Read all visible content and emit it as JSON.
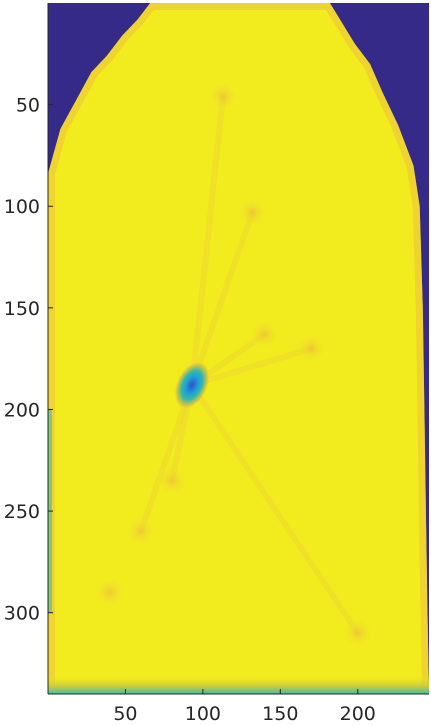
{
  "chart_data": {
    "type": "heatmap",
    "title": "",
    "xlabel": "",
    "ylabel": "",
    "xlim": [
      0,
      246
    ],
    "ylim": [
      0,
      340
    ],
    "y_reversed": true,
    "x_ticks": [
      50,
      100,
      150,
      200
    ],
    "y_ticks": [
      50,
      100,
      150,
      200,
      250,
      300
    ],
    "grid": false,
    "colormap": "parula",
    "colors": {
      "background": "#352A87",
      "field": "#F2EC1E",
      "field_light": "#F8F026",
      "warm_spot": "#EDBF3E",
      "edge_band": "#3CC1A5",
      "hotspot_mid": "#39B9A8",
      "hotspot_core": "#2E4FD0",
      "axis": "#262626"
    },
    "region_outline": [
      [
        0,
        84
      ],
      [
        8,
        62
      ],
      [
        18,
        48
      ],
      [
        28,
        34
      ],
      [
        38,
        26
      ],
      [
        48,
        16
      ],
      [
        58,
        8
      ],
      [
        66,
        0
      ],
      [
        182,
        0
      ],
      [
        190,
        10
      ],
      [
        198,
        20
      ],
      [
        208,
        30
      ],
      [
        216,
        44
      ],
      [
        226,
        60
      ],
      [
        236,
        80
      ],
      [
        240,
        100
      ],
      [
        242,
        150
      ],
      [
        243,
        200
      ],
      [
        244,
        250
      ],
      [
        245,
        300
      ],
      [
        246,
        340
      ],
      [
        0,
        340
      ]
    ],
    "hotspots": [
      {
        "x": 93,
        "y": 188,
        "level": "low"
      },
      {
        "x": 113,
        "y": 46,
        "level": "mid-high"
      },
      {
        "x": 132,
        "y": 103,
        "level": "mid-high"
      },
      {
        "x": 140,
        "y": 163,
        "level": "mid-high"
      },
      {
        "x": 170,
        "y": 170,
        "level": "mid-high"
      },
      {
        "x": 60,
        "y": 260,
        "level": "mid-high"
      },
      {
        "x": 40,
        "y": 290,
        "level": "mid-high"
      },
      {
        "x": 80,
        "y": 235,
        "level": "mid-high"
      },
      {
        "x": 200,
        "y": 310,
        "level": "mid-high"
      }
    ]
  }
}
